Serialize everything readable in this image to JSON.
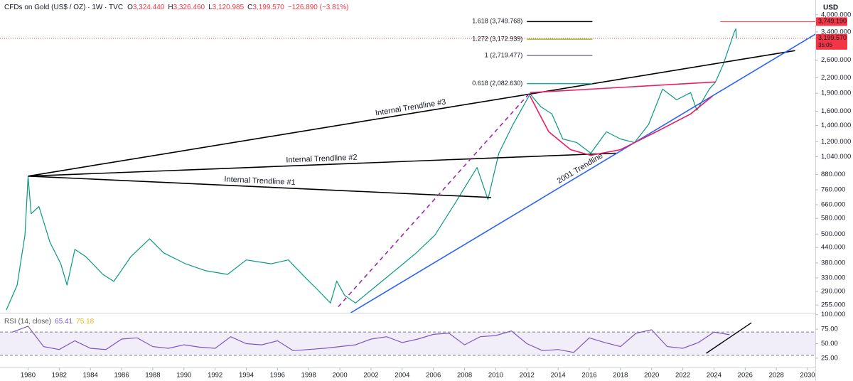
{
  "header": {
    "title": "CFDs on Gold (US$ / OZ) · 1W · TVC",
    "ohlc": [
      {
        "key": "O",
        "value": "3,324.440"
      },
      {
        "key": "H",
        "value": "3,326.460"
      },
      {
        "key": "L",
        "value": "3,120.985"
      },
      {
        "key": "C",
        "value": "3,199.570"
      }
    ],
    "change": "−126.890 (−3.81%)",
    "unit": "USD"
  },
  "chart_data": [
    {
      "type": "line",
      "log_scale": true,
      "grid": false,
      "color": "#089981",
      "xlim": [
        1978.2,
        2030.5
      ],
      "ylim": [
        237,
        4600
      ],
      "xticks": [
        1980,
        1982,
        1984,
        1986,
        1988,
        1990,
        1992,
        1994,
        1996,
        1998,
        2000,
        2002,
        2004,
        2006,
        2008,
        2010,
        2012,
        2014,
        2016,
        2018,
        2020,
        2022,
        2024,
        2026,
        2028,
        2030
      ],
      "yticks": [
        {
          "value": 255,
          "label": "255.000"
        },
        {
          "value": 290,
          "label": "290.000"
        },
        {
          "value": 330,
          "label": "330.000"
        },
        {
          "value": 380,
          "label": "380.000"
        },
        {
          "value": 440,
          "label": "440.000"
        },
        {
          "value": 500,
          "label": "500.000"
        },
        {
          "value": 580,
          "label": "580.000"
        },
        {
          "value": 660,
          "label": "660.000"
        },
        {
          "value": 760,
          "label": "760.000"
        },
        {
          "value": 880,
          "label": "880.000"
        },
        {
          "value": 1040,
          "label": "1,040.000"
        },
        {
          "value": 1200,
          "label": "1,200.000"
        },
        {
          "value": 1400,
          "label": "1,400.000"
        },
        {
          "value": 1600,
          "label": "1,600.000"
        },
        {
          "value": 1900,
          "label": "1,900.000"
        },
        {
          "value": 2200,
          "label": "2,200.000"
        },
        {
          "value": 2600,
          "label": "2,600.000"
        },
        {
          "value": 3400,
          "label": "3,400.000"
        },
        {
          "value": 4000,
          "label": "4,000.000"
        }
      ],
      "x": [
        1978.6,
        1979.3,
        1979.8,
        1980.0,
        1980.2,
        1980.7,
        1981.4,
        1982.1,
        1982.5,
        1983.0,
        1983.7,
        1984.8,
        1985.5,
        1986.6,
        1987.8,
        1988.7,
        1990.1,
        1991.4,
        1992.8,
        1994.0,
        1995.6,
        1996.7,
        1997.8,
        1998.5,
        1999.4,
        1999.8,
        2000.3,
        2001.0,
        2002.4,
        2003.8,
        2004.9,
        2006.1,
        2007.4,
        2008.8,
        2009.5,
        2010.2,
        2011.1,
        2012.2,
        2012.9,
        2013.6,
        2014.3,
        2015.2,
        2016.1,
        2017.1,
        2018.0,
        2018.9,
        2019.8,
        2020.7,
        2021.6,
        2022.5,
        2022.9,
        2023.7,
        2024.1,
        2024.6,
        2025.3,
        2025.4,
        2025.45
      ],
      "values": [
        243,
        308,
        495,
        861,
        606,
        649,
        463,
        377,
        308,
        432,
        404,
        341,
        319,
        404,
        478,
        418,
        377,
        353,
        341,
        391,
        377,
        391,
        330,
        298,
        260,
        320,
        280,
        260,
        308,
        365,
        418,
        495,
        671,
        940,
        694,
        1076,
        1410,
        1886,
        1670,
        1561,
        1232,
        1190,
        1076,
        1318,
        1232,
        1190,
        1410,
        1977,
        1786,
        1911,
        1616,
        1977,
        2115,
        2504,
        3394,
        3500,
        3199.57
      ],
      "trendline_label_color": "#1e6b57",
      "trendlines": [
        {
          "label": "Internal Trendline #1",
          "color": "#000000",
          "x": [
            1980.0,
            2009.7
          ],
          "y": [
            866,
            707
          ]
        },
        {
          "label": "Internal Trendline #2",
          "color": "#000000",
          "x": [
            1980.0,
            2017.7
          ],
          "y": [
            866,
            1076
          ]
        },
        {
          "label": "Internal Trendline #3",
          "color": "#000000",
          "x": [
            1980.0,
            2029.2
          ],
          "y": [
            866,
            2846
          ]
        },
        {
          "label": "2001 Trendline",
          "color": "#2962ff",
          "x": [
            2000.7,
            2030.5
          ],
          "y": [
            237,
            3326
          ]
        },
        {
          "color": "#9c27b0",
          "dashed": true,
          "x": [
            1999.9,
            2012.2
          ],
          "y": [
            251,
            1911
          ]
        },
        {
          "color": "#e91e63",
          "x": [
            2012.2,
            2024.1
          ],
          "y": [
            1911,
            2115
          ]
        },
        {
          "color": "#e91e63",
          "x": [
            2012.2,
            2013.4,
            2014.8,
            2016.1,
            2018.0,
            2020.3,
            2022.5,
            2023.9
          ],
          "y": [
            1848,
            1318,
            1113,
            1055,
            1113,
            1318,
            1561,
            1848
          ]
        }
      ],
      "fib_x": [
        2012.0,
        2016.2
      ],
      "fib_levels": [
        {
          "value": 3749.768,
          "label": "1.618 (3,749.768)",
          "color": "#000000"
        },
        {
          "value": 3172.939,
          "label": "1.272 (3,172.939)",
          "color": "#9db82e"
        },
        {
          "value": 2719.477,
          "label": "1 (2,719.477)",
          "color": "#787b86"
        },
        {
          "value": 2082.63,
          "label": "0.618 (2,082.630)",
          "color": "#22ab94"
        }
      ],
      "price_labels": [
        {
          "value": 3749.19,
          "label": "3,749.190",
          "color": "#f23645",
          "line_start": 2024.4,
          "line_style": "solid"
        },
        {
          "value": 3199.57,
          "label": "3,199.570",
          "countdown": "35:05",
          "color": "#f23645",
          "line_style": "dotted"
        }
      ]
    },
    {
      "type": "line",
      "title": "RSI (14, close)",
      "color": "#7e57c2",
      "readings": [
        {
          "value": 65.41,
          "color": "#7e57c2"
        },
        {
          "value": 75.18,
          "color": "#e6b422"
        }
      ],
      "xlim": [
        1978.2,
        2030.5
      ],
      "ylim": [
        9,
        102
      ],
      "bands": [
        30,
        70
      ],
      "yticks": [
        {
          "value": 100,
          "label": "100.000"
        },
        {
          "value": 75,
          "label": "75.00"
        },
        {
          "value": 50,
          "label": "50.00"
        },
        {
          "value": 25,
          "label": "25.00"
        }
      ],
      "x": [
        1979,
        1980,
        1981,
        1982,
        1983,
        1984,
        1985,
        1986,
        1987,
        1988,
        1989,
        1990,
        1991,
        1992,
        1993,
        1994,
        1995,
        1996,
        1997,
        1998,
        1999,
        2000,
        2001,
        2002,
        2003,
        2004,
        2005,
        2006,
        2007,
        2008,
        2009,
        2010,
        2011,
        2012,
        2013,
        2014,
        2015,
        2016,
        2017,
        2018,
        2019,
        2020,
        2021,
        2022,
        2023,
        2024,
        2025
      ],
      "values": [
        70,
        80,
        45,
        40,
        55,
        42,
        40,
        58,
        60,
        45,
        42,
        48,
        44,
        42,
        62,
        50,
        48,
        55,
        38,
        40,
        42,
        45,
        48,
        58,
        62,
        52,
        58,
        66,
        68,
        48,
        62,
        64,
        72,
        50,
        38,
        40,
        35,
        60,
        52,
        45,
        68,
        74,
        45,
        42,
        52,
        70,
        65.41
      ],
      "trendlines": [
        {
          "color": "#000000",
          "x": [
            2023.5,
            2026.4
          ],
          "y": [
            33.5,
            86
          ]
        }
      ]
    }
  ]
}
